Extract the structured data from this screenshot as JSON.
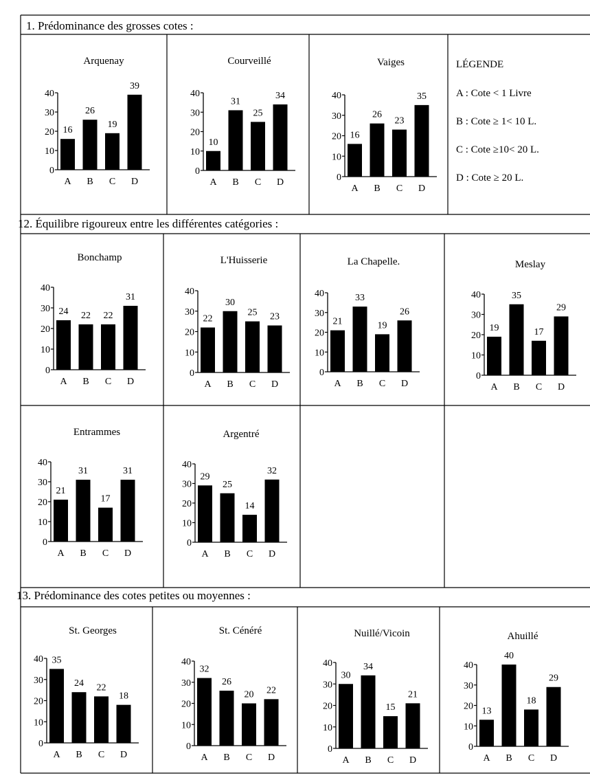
{
  "sections": [
    {
      "title": "1. Prédominance des grosses cotes :"
    },
    {
      "title": "12. Équilibre rigoureux entre les différentes catégories :"
    },
    {
      "title": "13. Prédominance des cotes petites ou moyennes :"
    }
  ],
  "legend": {
    "title": "LÉGENDE",
    "items": [
      "A : Cote < 1 Livre",
      "B : Cote ≥ 1< 10 L.",
      "C : Cote ≥10< 20 L.",
      "D : Cote ≥ 20 L."
    ]
  },
  "chart_data": [
    {
      "type": "bar",
      "title": "Arquenay",
      "categories": [
        "A",
        "B",
        "C",
        "D"
      ],
      "values": [
        16,
        26,
        19,
        39
      ],
      "ylim": [
        0,
        40
      ],
      "yticks": [
        0,
        10,
        20,
        30,
        40
      ]
    },
    {
      "type": "bar",
      "title": "Courveillé",
      "categories": [
        "A",
        "B",
        "C",
        "D"
      ],
      "values": [
        10,
        31,
        25,
        34
      ],
      "ylim": [
        0,
        40
      ],
      "yticks": [
        0,
        10,
        20,
        30,
        40
      ]
    },
    {
      "type": "bar",
      "title": "Vaiges",
      "categories": [
        "A",
        "B",
        "C",
        "D"
      ],
      "values": [
        16,
        26,
        23,
        35
      ],
      "ylim": [
        0,
        40
      ],
      "yticks": [
        0,
        10,
        20,
        30,
        40
      ]
    },
    {
      "type": "bar",
      "title": "Bonchamp",
      "categories": [
        "A",
        "B",
        "C",
        "D"
      ],
      "values": [
        24,
        22,
        22,
        31
      ],
      "ylim": [
        0,
        40
      ],
      "yticks": [
        0,
        10,
        20,
        30,
        40
      ]
    },
    {
      "type": "bar",
      "title": "L'Huisserie",
      "categories": [
        "A",
        "B",
        "C",
        "D"
      ],
      "values": [
        22,
        30,
        25,
        23
      ],
      "ylim": [
        0,
        40
      ],
      "yticks": [
        0,
        10,
        20,
        30,
        40
      ]
    },
    {
      "type": "bar",
      "title": "La Chapelle.",
      "categories": [
        "A",
        "B",
        "C",
        "D"
      ],
      "values": [
        21,
        33,
        19,
        26
      ],
      "ylim": [
        0,
        40
      ],
      "yticks": [
        0,
        10,
        20,
        30,
        40
      ]
    },
    {
      "type": "bar",
      "title": "Meslay",
      "categories": [
        "A",
        "B",
        "C",
        "D"
      ],
      "values": [
        19,
        35,
        17,
        29
      ],
      "ylim": [
        0,
        40
      ],
      "yticks": [
        0,
        10,
        20,
        30,
        40
      ]
    },
    {
      "type": "bar",
      "title": "Entrammes",
      "categories": [
        "A",
        "B",
        "C",
        "D"
      ],
      "values": [
        21,
        31,
        17,
        31
      ],
      "ylim": [
        0,
        40
      ],
      "yticks": [
        0,
        10,
        20,
        30,
        40
      ]
    },
    {
      "type": "bar",
      "title": "Argentré",
      "categories": [
        "A",
        "B",
        "C",
        "D"
      ],
      "values": [
        29,
        25,
        14,
        32
      ],
      "ylim": [
        0,
        40
      ],
      "yticks": [
        0,
        10,
        20,
        30,
        40
      ]
    },
    {
      "type": "bar",
      "title": "St. Georges",
      "categories": [
        "A",
        "B",
        "C",
        "D"
      ],
      "values": [
        35,
        24,
        22,
        18
      ],
      "ylim": [
        0,
        40
      ],
      "yticks": [
        0,
        10,
        20,
        30,
        40
      ]
    },
    {
      "type": "bar",
      "title": "St. Cénéré",
      "categories": [
        "A",
        "B",
        "C",
        "D"
      ],
      "values": [
        32,
        26,
        20,
        22
      ],
      "ylim": [
        0,
        40
      ],
      "yticks": [
        0,
        10,
        20,
        30,
        40
      ]
    },
    {
      "type": "bar",
      "title": "Nuillé/Vicoin",
      "categories": [
        "A",
        "B",
        "C",
        "D"
      ],
      "values": [
        30,
        34,
        15,
        21
      ],
      "ylim": [
        0,
        40
      ],
      "yticks": [
        0,
        10,
        20,
        30,
        40
      ]
    },
    {
      "type": "bar",
      "title": "Ahuillé",
      "categories": [
        "A",
        "B",
        "C",
        "D"
      ],
      "values": [
        13,
        40,
        18,
        29
      ],
      "ylim": [
        0,
        40
      ],
      "yticks": [
        0,
        10,
        20,
        30,
        40
      ]
    }
  ]
}
